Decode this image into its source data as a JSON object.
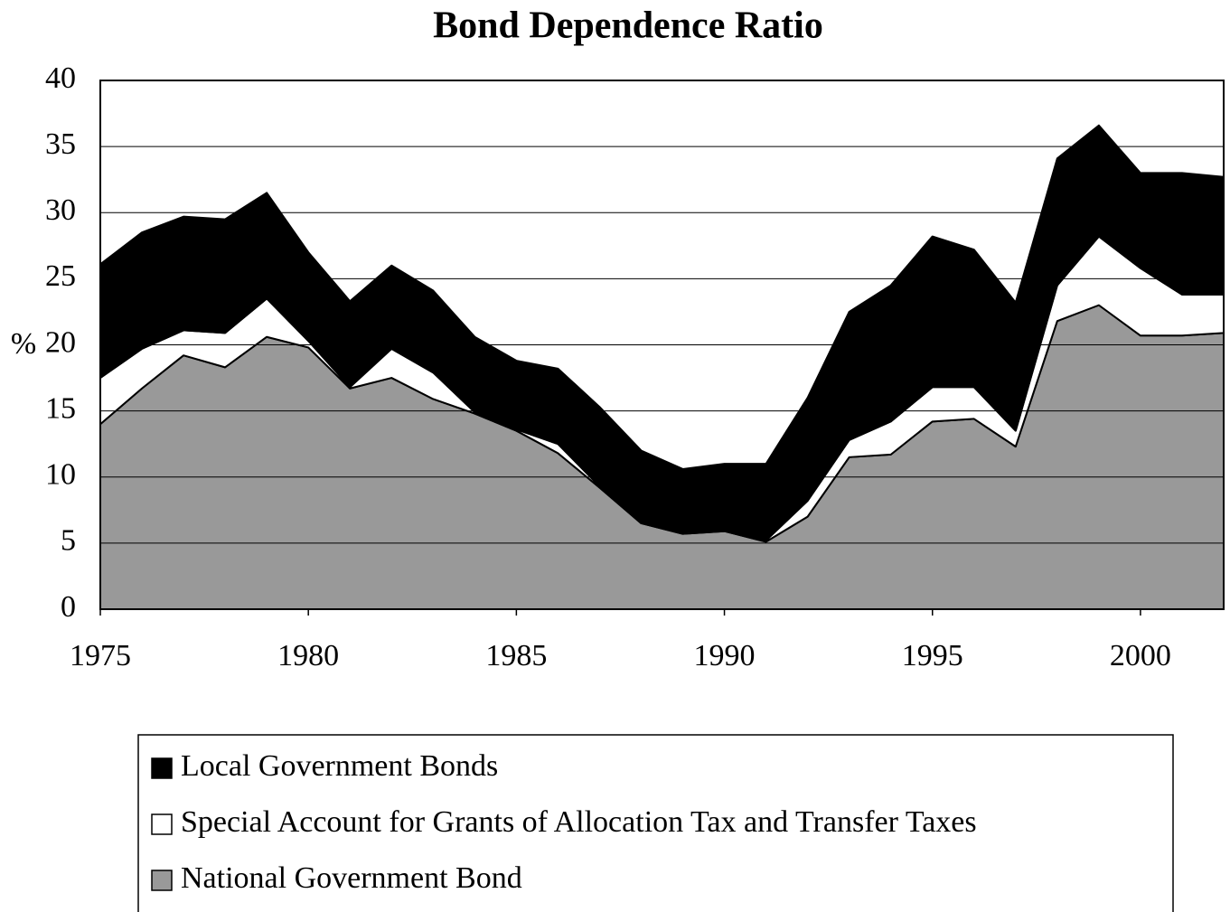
{
  "chart_data": {
    "type": "stacked-area",
    "title": "Bond Dependence Ratio",
    "y_label": "%",
    "x": [
      1975,
      1976,
      1977,
      1978,
      1979,
      1980,
      1981,
      1982,
      1983,
      1984,
      1985,
      1986,
      1987,
      1988,
      1989,
      1990,
      1991,
      1992,
      1993,
      1994,
      1995,
      1996,
      1997,
      1998,
      1999,
      2000,
      2001,
      2002
    ],
    "series": [
      {
        "name": "Local Government Bonds",
        "color": "#000000",
        "values": [
          8.6,
          8.8,
          8.6,
          8.6,
          8.0,
          6.7,
          6.5,
          6.3,
          6.2,
          5.7,
          5.2,
          5.7,
          6.0,
          5.4,
          4.8,
          5.0,
          5.8,
          7.8,
          9.7,
          10.3,
          11.4,
          10.4,
          9.7,
          9.6,
          8.4,
          7.2,
          9.2,
          8.9
        ]
      },
      {
        "name": "Special Account for Grants of Allocation Tax and Transfer Taxes",
        "color": "#ffffff",
        "values": [
          3.5,
          3.0,
          1.9,
          2.6,
          2.9,
          0.5,
          0.1,
          2.2,
          2.0,
          0.1,
          0.1,
          0.7,
          0.1,
          0.1,
          0.1,
          0.1,
          0.1,
          1.2,
          1.3,
          2.5,
          2.6,
          2.4,
          1.2,
          2.7,
          5.2,
          5.1,
          3.1,
          2.9
        ]
      },
      {
        "name": "National Government Bond",
        "color": "#999999",
        "values": [
          14.0,
          16.7,
          19.2,
          18.3,
          20.6,
          19.8,
          16.7,
          17.5,
          15.9,
          14.8,
          13.5,
          11.8,
          9.2,
          6.5,
          5.7,
          5.9,
          5.1,
          7.0,
          11.5,
          11.7,
          14.2,
          14.4,
          12.3,
          21.8,
          23.0,
          20.7,
          20.7,
          20.9
        ]
      }
    ],
    "xlim": [
      1975,
      2002
    ],
    "xticks": [
      1975,
      1980,
      1985,
      1990,
      1995,
      2000
    ],
    "ylim": [
      0,
      40
    ],
    "yticks": [
      0,
      5,
      10,
      15,
      20,
      25,
      30,
      35,
      40
    ],
    "grid": true
  }
}
